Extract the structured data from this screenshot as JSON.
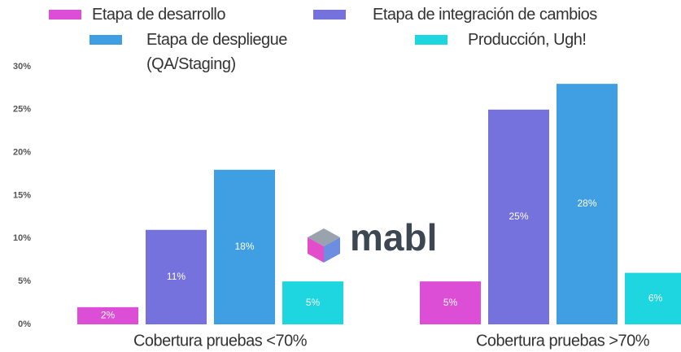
{
  "chart_data": {
    "type": "bar",
    "categories": [
      "Cobertura pruebas <70%",
      "Cobertura pruebas >70%"
    ],
    "series": [
      {
        "name": "Etapa de desarrollo",
        "color": "#dd4ed6",
        "values": [
          2,
          5
        ],
        "value_labels": [
          "2%",
          "5%"
        ]
      },
      {
        "name": "Etapa de integración de cambios",
        "color": "#7571dd",
        "values": [
          11,
          25
        ],
        "value_labels": [
          "11%",
          "25%"
        ]
      },
      {
        "name": "Etapa de despliegue (QA/Staging)",
        "color": "#3f9fe2",
        "values": [
          18,
          28
        ],
        "value_labels": [
          "18%",
          "28%"
        ]
      },
      {
        "name": "Producción, Ugh!",
        "color": "#1dd6df",
        "values": [
          5,
          6
        ],
        "value_labels": [
          "5%",
          "6%"
        ]
      }
    ],
    "ylim": [
      0,
      30
    ],
    "yticks": [
      {
        "value": 0,
        "label": "0%"
      },
      {
        "value": 5,
        "label": "5%"
      },
      {
        "value": 10,
        "label": "10%"
      },
      {
        "value": 15,
        "label": "15%"
      },
      {
        "value": 20,
        "label": "20%"
      },
      {
        "value": 25,
        "label": "25%"
      },
      {
        "value": 30,
        "label": "30%"
      }
    ],
    "grid": false,
    "watermark": "mabl"
  }
}
